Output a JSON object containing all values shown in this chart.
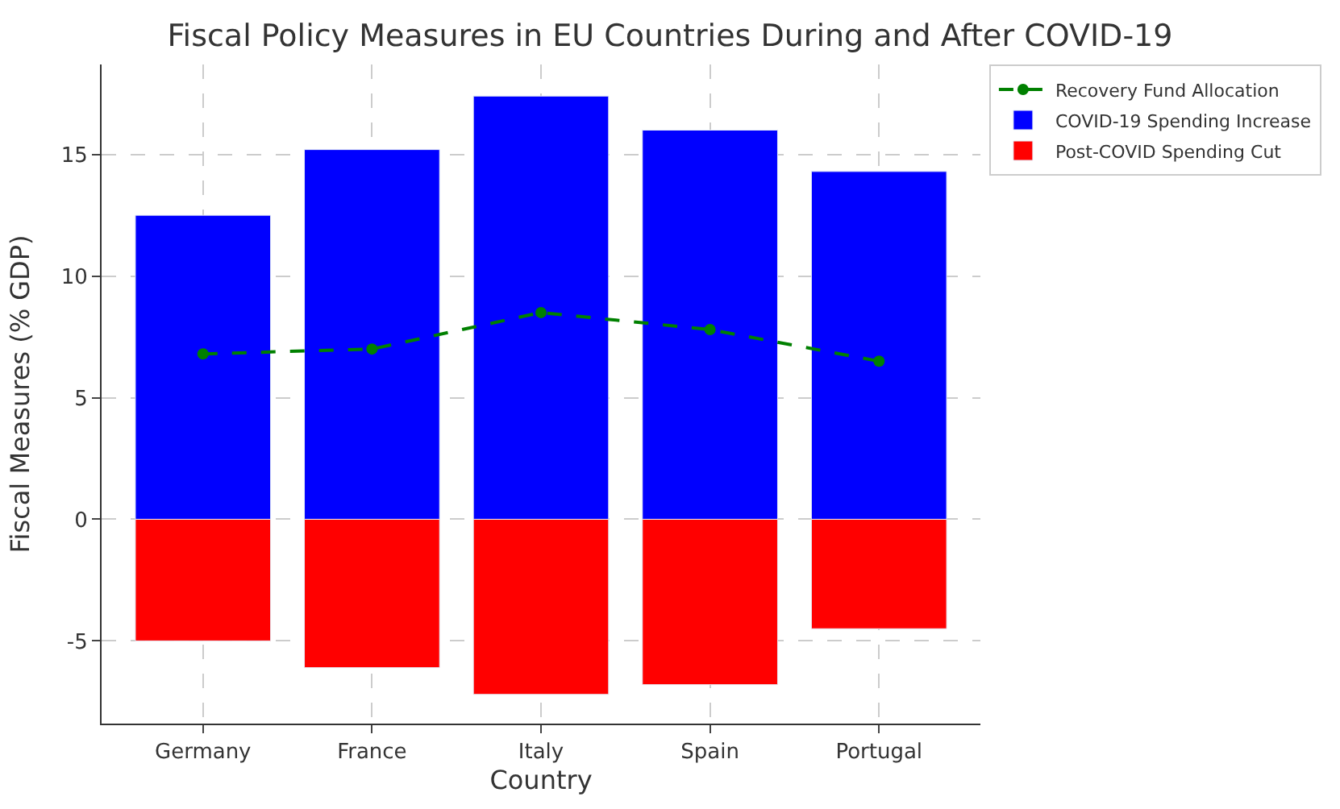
{
  "chart_data": {
    "type": "bar",
    "stacked": true,
    "title": "Fiscal Policy Measures in EU Countries During and After COVID-19",
    "xlabel": "Country",
    "ylabel": "Fiscal Measures (% GDP)",
    "categories": [
      "Germany",
      "France",
      "Italy",
      "Spain",
      "Portugal"
    ],
    "series": [
      {
        "name": "COVID-19 Spending Increase",
        "color": "#0000ff",
        "values": [
          12.5,
          15.2,
          17.4,
          16.0,
          14.3
        ]
      },
      {
        "name": "Post-COVID Spending Cut",
        "color": "#ff0000",
        "values": [
          -5.0,
          -6.1,
          -7.2,
          -6.8,
          -4.5
        ]
      },
      {
        "name": "Recovery Fund Allocation",
        "type": "line",
        "color": "#008000",
        "marker": "circle",
        "line_style": "dashed",
        "values": [
          6.8,
          7.0,
          8.5,
          7.8,
          6.5
        ]
      }
    ],
    "ylim": [
      -8.4,
      18.7
    ],
    "yticks": [
      -5,
      0,
      5,
      10,
      15
    ],
    "grid": true,
    "legend": "top right"
  }
}
